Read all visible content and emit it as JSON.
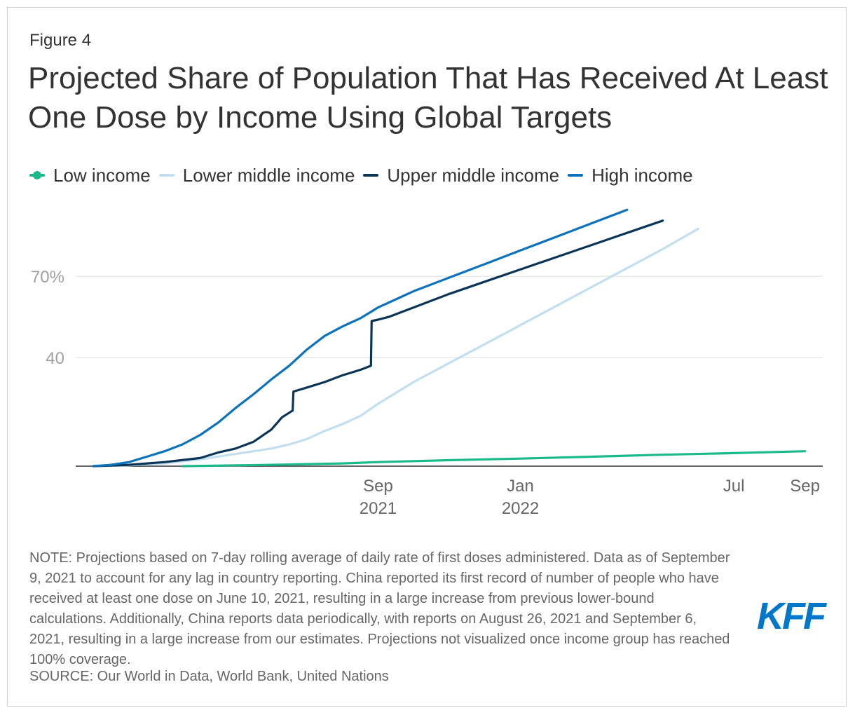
{
  "figure_label": "Figure 4",
  "title": "Projected Share of Population That Has Received At Least One Dose by Income Using Global Targets",
  "legend": [
    {
      "label": "Low income",
      "color": "#1aba8a",
      "marker": "dot"
    },
    {
      "label": "Lower middle income",
      "color": "#c2dff0",
      "marker": "line"
    },
    {
      "label": "Upper middle income",
      "color": "#0b3556",
      "marker": "line"
    },
    {
      "label": "High income",
      "color": "#0b72bb",
      "marker": "line"
    }
  ],
  "chart_data": {
    "type": "line",
    "title": "Projected Share of Population That Has Received At Least One Dose by Income Using Global Targets",
    "xlabel": "",
    "ylabel": "",
    "x_unit": "months since Jan 2021",
    "xlim": [
      -0.5,
      20.5
    ],
    "ylim": [
      0,
      100
    ],
    "yticks": [
      {
        "value": 40,
        "label": "40"
      },
      {
        "value": 70,
        "label": "70%"
      }
    ],
    "xticks": [
      {
        "value": 8,
        "label": "Sep",
        "sublabel": "2021"
      },
      {
        "value": 12,
        "label": "Jan",
        "sublabel": "2022"
      },
      {
        "value": 18,
        "label": "Jul",
        "sublabel": ""
      },
      {
        "value": 20,
        "label": "Sep",
        "sublabel": ""
      }
    ],
    "grid": true,
    "series": [
      {
        "name": "Low income",
        "color": "#1aba8a",
        "x": [
          2.5,
          5.0,
          7.0,
          8.0,
          10.0,
          12.0,
          14.0,
          16.0,
          18.0,
          20.0
        ],
        "y": [
          0,
          0.5,
          1.0,
          1.5,
          2.2,
          2.8,
          3.5,
          4.2,
          4.8,
          5.5
        ]
      },
      {
        "name": "Lower middle income",
        "color": "#c2dff0",
        "x": [
          0,
          1.0,
          2.0,
          3.0,
          4.0,
          5.0,
          5.5,
          6.0,
          6.5,
          7.0,
          7.5,
          8.0,
          8.5,
          9.0,
          10.0,
          11.0,
          12.0,
          13.0,
          14.0,
          15.0,
          16.0,
          17.0
        ],
        "y": [
          0,
          0.3,
          1.0,
          2.5,
          4.5,
          6.5,
          8.0,
          10.0,
          13.0,
          15.5,
          18.5,
          23.0,
          27.0,
          31.0,
          38.0,
          45.0,
          52.0,
          59.0,
          66.0,
          73.0,
          80.0,
          87.5
        ]
      },
      {
        "name": "Upper middle income",
        "color": "#0b3556",
        "x": [
          0,
          1.0,
          2.0,
          3.0,
          3.5,
          4.0,
          4.5,
          5.0,
          5.3,
          5.6,
          5.62,
          6.0,
          6.5,
          7.0,
          7.5,
          7.8,
          7.82,
          8.0,
          8.3,
          9.0,
          10.0,
          11.0,
          12.0,
          13.0,
          14.0,
          15.0,
          16.0
        ],
        "y": [
          0,
          0.5,
          1.5,
          3.0,
          5.0,
          6.5,
          9.0,
          13.5,
          18.0,
          20.5,
          27.5,
          29.0,
          31.0,
          33.5,
          35.5,
          37.0,
          53.5,
          54.0,
          55.0,
          58.5,
          63.5,
          68.0,
          72.5,
          77.0,
          81.5,
          86.0,
          90.5
        ]
      },
      {
        "name": "High income",
        "color": "#0b72bb",
        "x": [
          0,
          0.5,
          1.0,
          1.5,
          2.0,
          2.5,
          3.0,
          3.5,
          4.0,
          4.5,
          5.0,
          5.5,
          6.0,
          6.5,
          7.0,
          7.5,
          8.0,
          8.5,
          9.0,
          10.0,
          11.0,
          12.0,
          13.0,
          14.0,
          15.0
        ],
        "y": [
          0,
          0.5,
          1.5,
          3.5,
          5.5,
          8.0,
          11.5,
          16.0,
          21.5,
          26.5,
          32.0,
          37.0,
          43.0,
          48.0,
          51.5,
          54.5,
          58.5,
          61.5,
          64.5,
          69.5,
          74.5,
          79.5,
          84.5,
          89.5,
          94.5
        ]
      }
    ]
  },
  "note": "NOTE: Projections based on 7-day rolling average of daily rate of first doses administered. Data as of September 9, 2021 to account for any lag in country reporting. China reported its first record of number of people who have received at least one dose on June 10, 2021, resulting in a large increase from previous lower-bound calculations. Additionally, China reports data periodically, with reports on August 26, 2021 and September 6, 2021, resulting in a large increase from our estimates. Projections not visualized once income group has reached 100% coverage.",
  "source": "SOURCE: Our World in Data, World Bank, United Nations",
  "logo_text": "KFF"
}
